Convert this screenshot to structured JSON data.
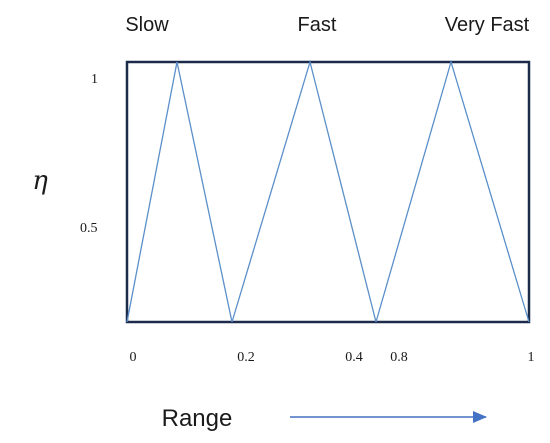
{
  "chart_data": {
    "type": "line",
    "ylabel": "η",
    "xlabel": "Range",
    "top_labels": [
      "Slow",
      "Fast",
      "Very Fast"
    ],
    "x_ticks": [
      "0",
      "0.2",
      "0.4",
      "0.8",
      "1"
    ],
    "y_ticks": [
      "1",
      "0.5"
    ],
    "triangles": [
      {
        "label": "Slow",
        "start_tick": "0",
        "end_tick": "0.2"
      },
      {
        "label": "Fast",
        "start_tick": "0.2",
        "end_tick": "0.4"
      },
      {
        "label": "Very Fast",
        "start_tick": "0.4",
        "end_tick": "1"
      }
    ],
    "ylim": [
      0,
      1
    ],
    "grid": false,
    "colors": {
      "line": "#5b8fc9",
      "frame": "#1c2b4a",
      "arrow": "#4472c4"
    }
  }
}
